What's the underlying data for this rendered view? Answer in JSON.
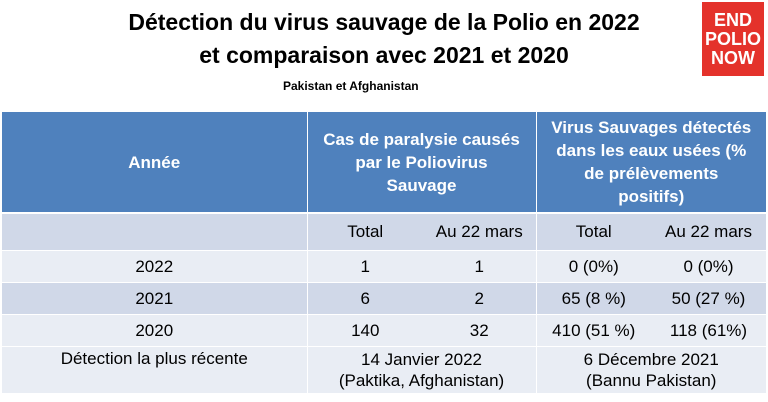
{
  "title": {
    "line1": "Détection du virus sauvage de la Polio en 2022",
    "line2": "et comparaison avec 2021 et 2020"
  },
  "subtitle": "Pakistan et Afghanistan",
  "logo": {
    "line1": "END",
    "line2": "POLIO",
    "line3": "NOW",
    "color": "#e4322b"
  },
  "table": {
    "header": {
      "year": "Année",
      "cases": "Cas de paralysie causés par le Poliovirus Sauvage",
      "env": "Virus  Sauvages détectés dans les eaux usées (% de prélèvements positifs)"
    },
    "subheader": [
      "",
      "Total",
      "Au 22 mars",
      "Total",
      "Au 22 mars"
    ],
    "rows": [
      [
        "2022",
        "1",
        "1",
        "0 (0%)",
        "0 (0%)"
      ],
      [
        "2021",
        "6",
        "2",
        "65 (8 %)",
        "50 (27 %)"
      ],
      [
        "2020",
        "140",
        "32",
        "410 (51 %)",
        "118 (61%)"
      ]
    ],
    "last": {
      "label": "Détection la plus récente",
      "cases_line1": "14 Janvier 2022",
      "cases_line2": "(Paktika,  Afghanistan)",
      "env_line1": "6 Décembre 2021",
      "env_line2": "(Bannu Pakistan)"
    },
    "colors": {
      "header": "#4f81bd",
      "row_light": "#e9edf4",
      "row_dark": "#d0d8e8"
    }
  }
}
